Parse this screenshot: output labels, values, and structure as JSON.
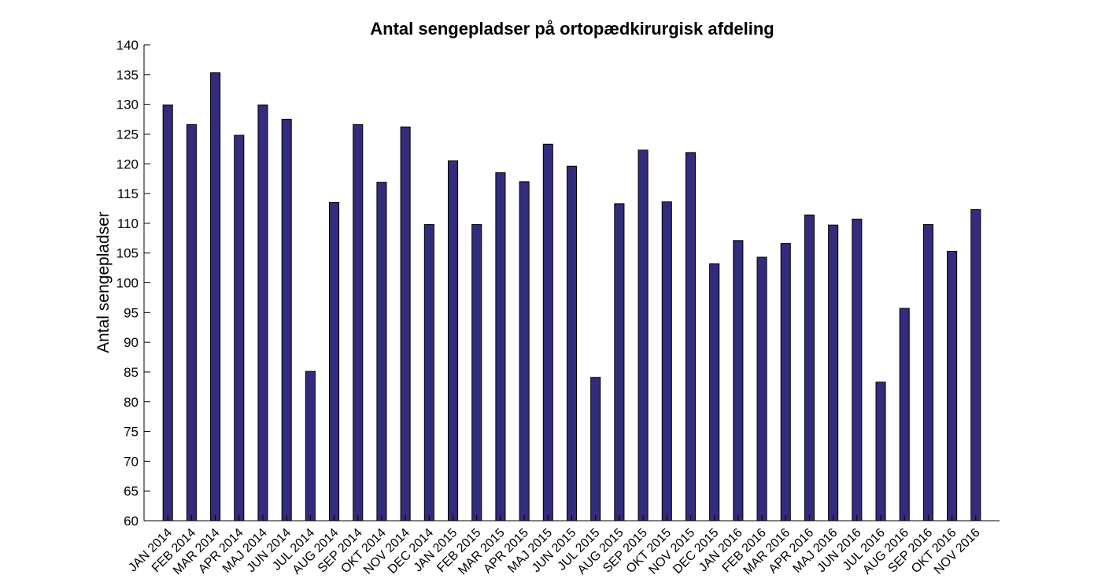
{
  "chart_data": {
    "type": "bar",
    "title": "Antal sengepladser på ortopædkirurgisk afdeling",
    "xlabel": "",
    "ylabel": "Antal sengepladser",
    "ylim": [
      60,
      140
    ],
    "yticks": [
      60,
      65,
      70,
      75,
      80,
      85,
      90,
      95,
      100,
      105,
      110,
      115,
      120,
      125,
      130,
      135,
      140
    ],
    "grid": false,
    "legend": "none",
    "bar_color": "#332B7C",
    "categories": [
      "JAN 2014",
      "FEB 2014",
      "MAR 2014",
      "APR 2014",
      "MAJ 2014",
      "JUN 2014",
      "JUL 2014",
      "AUG 2014",
      "SEP 2014",
      "OKT 2014",
      "NOV 2014",
      "DEC 2014",
      "JAN 2015",
      "FEB 2015",
      "MAR 2015",
      "APR 2015",
      "MAJ 2015",
      "JUN 2015",
      "JUL 2015",
      "AUG 2015",
      "SEP 2015",
      "OKT 2015",
      "NOV 2015",
      "DEC 2015",
      "JAN 2016",
      "FEB 2016",
      "MAR 2016",
      "APR 2016",
      "MAJ 2016",
      "JUN 2016",
      "JUL 2016",
      "AUG 2016",
      "SEP 2016",
      "OKT 2016",
      "NOV 2016"
    ],
    "values": [
      129.9,
      126.6,
      135.3,
      124.8,
      129.9,
      127.5,
      85.1,
      113.5,
      126.6,
      116.9,
      126.2,
      109.8,
      120.5,
      109.8,
      118.5,
      117.0,
      123.3,
      119.6,
      84.1,
      113.3,
      122.3,
      113.6,
      121.9,
      103.2,
      107.1,
      104.3,
      106.6,
      111.4,
      109.7,
      110.7,
      83.3,
      95.7,
      109.8,
      105.3,
      112.3
    ]
  }
}
